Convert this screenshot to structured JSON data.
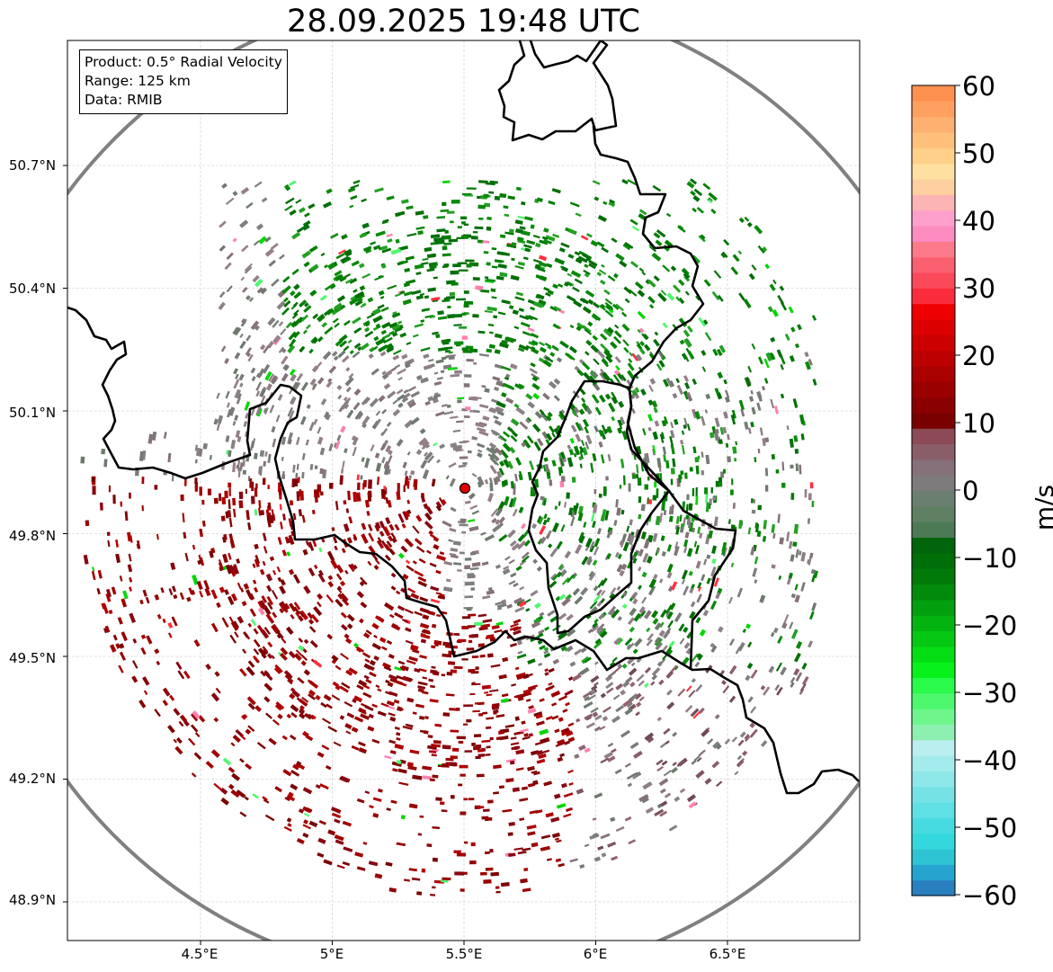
{
  "title": "28.09.2025 19:48 UTC",
  "info": {
    "product": "Product: 0.5° Radial Velocity",
    "range": "Range: 125 km",
    "data": "Data: RMIB"
  },
  "axes": {
    "lat_ticks": [
      "50.7°N",
      "50.4°N",
      "50.1°N",
      "49.8°N",
      "49.5°N",
      "49.2°N",
      "48.9°N"
    ],
    "lon_ticks": [
      "4.5°E",
      "5°E",
      "5.5°E",
      "6°E",
      "6.5°E"
    ]
  },
  "colorbar": {
    "unit": "m/s",
    "ticks": [
      "60",
      "50",
      "40",
      "30",
      "20",
      "10",
      "0",
      "−10",
      "−20",
      "−30",
      "−40",
      "−50",
      "−60"
    ],
    "min": -60,
    "max": 60,
    "colors": [
      "#2a7fbf",
      "#26a3cf",
      "#2ec4d3",
      "#33d8dc",
      "#46dbe0",
      "#5fe0e4",
      "#75e3e6",
      "#8ee7e9",
      "#a4ebec",
      "#baeeef",
      "#8ef0b0",
      "#6ef68c",
      "#4ef86e",
      "#2afa4a",
      "#06f21a",
      "#05dd14",
      "#04c812",
      "#03b410",
      "#029f0e",
      "#028a0c",
      "#017a0a",
      "#016f08",
      "#00640a",
      "#4b7a55",
      "#5e7f62",
      "#6b7f70",
      "#7d7b7c",
      "#86707a",
      "#8a5e68",
      "#8b4a55",
      "#7a0000",
      "#8a0000",
      "#9a0000",
      "#aa0000",
      "#bc0000",
      "#cc0000",
      "#dc0000",
      "#ee0000",
      "#fa2c3c",
      "#fa4a5a",
      "#fb6070",
      "#fc7a8a",
      "#fd8cc0",
      "#fda0cc",
      "#fdb4b4",
      "#fed0a0",
      "#fee0a0",
      "#fed08a",
      "#fec07a",
      "#feb070",
      "#fea060",
      "#fe9050"
    ]
  },
  "radar_site": {
    "lat": 49.914,
    "lon": 5.505
  }
}
